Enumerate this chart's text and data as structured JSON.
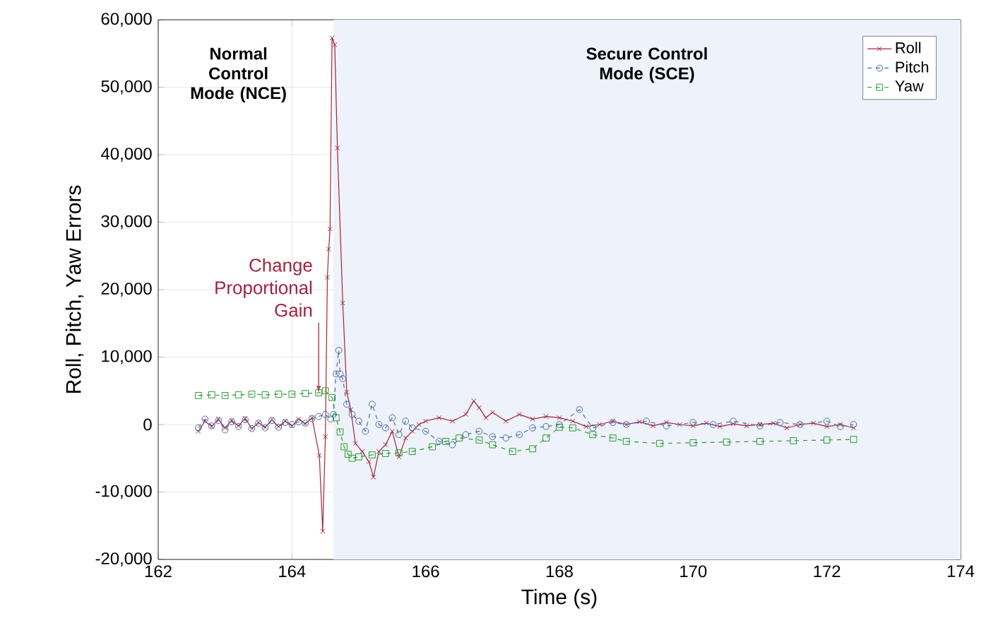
{
  "chart_data": {
    "type": "line",
    "xlabel": "Time (s)",
    "ylabel": "Roll, Pitch, Yaw Errors",
    "xlim": [
      162,
      174
    ],
    "xticks": [
      162,
      164,
      166,
      168,
      170,
      172,
      174
    ],
    "ylim": [
      -20000,
      60000
    ],
    "yticks": [
      {
        "value": -20000,
        "label": "-20,000"
      },
      {
        "value": -10000,
        "label": "-10,000"
      },
      {
        "value": 0,
        "label": "0"
      },
      {
        "value": 10000,
        "label": "10,000"
      },
      {
        "value": 20000,
        "label": "20,000"
      },
      {
        "value": 30000,
        "label": "30,000"
      },
      {
        "value": 40000,
        "label": "40,000"
      },
      {
        "value": 50000,
        "label": "50,000"
      },
      {
        "value": 60000,
        "label": "60,000"
      }
    ],
    "grid": true,
    "legend": "top right",
    "bands": [
      {
        "axis": "x",
        "from": 164.62,
        "to": 174,
        "label": "Secure Control Mode (SCE)",
        "color": "#eef2fa"
      }
    ],
    "annotations": [
      "Normal Control Mode (NCE)",
      {
        "text": "Change Proportional Gain",
        "x": 164.4,
        "y": 4700
      }
    ],
    "series": [
      {
        "name": "Roll",
        "color": "#a3233f",
        "marker": "cross",
        "line_style": "solid",
        "x": [
          162.6,
          162.7,
          162.8,
          162.9,
          163.0,
          163.1,
          163.2,
          163.3,
          163.4,
          163.5,
          163.6,
          163.7,
          163.8,
          163.9,
          164.0,
          164.1,
          164.2,
          164.3,
          164.41,
          164.46,
          164.5,
          164.53,
          164.55,
          164.57,
          164.6,
          164.64,
          164.68,
          164.76,
          164.82,
          164.88,
          164.95,
          165.05,
          165.15,
          165.22,
          165.3,
          165.4,
          165.5,
          165.6,
          165.7,
          165.8,
          165.9,
          166.0,
          166.2,
          166.4,
          166.6,
          166.72,
          166.8,
          166.9,
          167.0,
          167.2,
          167.4,
          167.6,
          167.8,
          168.0,
          168.2,
          168.4,
          168.6,
          168.8,
          169.0,
          169.2,
          169.4,
          169.6,
          169.8,
          170.0,
          170.2,
          170.4,
          170.6,
          170.8,
          171.0,
          171.2,
          171.4,
          171.6,
          171.8,
          172.0,
          172.2,
          172.4
        ],
        "values": [
          -1000,
          500,
          -300,
          800,
          -500,
          600,
          -200,
          900,
          -600,
          300,
          -400,
          700,
          -300,
          500,
          -200,
          800,
          100,
          1000,
          -4600,
          -15800,
          -1800,
          21800,
          26000,
          29000,
          57300,
          56300,
          41000,
          18000,
          4800,
          2200,
          -2800,
          -4000,
          -5500,
          -7800,
          -4000,
          -3000,
          -1000,
          -4800,
          -2000,
          -1000,
          0,
          500,
          1000,
          500,
          1500,
          3500,
          2500,
          1000,
          1800,
          500,
          1500,
          800,
          1200,
          1000,
          500,
          -300,
          0,
          500,
          0,
          400,
          -200,
          300,
          0,
          -200,
          200,
          -300,
          100,
          -200,
          0,
          200,
          -500,
          0,
          200,
          -300,
          0,
          -500
        ]
      },
      {
        "name": "Pitch",
        "color": "#4a6aa5",
        "marker": "circle",
        "line_style": "dashed",
        "x": [
          162.6,
          162.7,
          162.8,
          162.9,
          163.0,
          163.1,
          163.2,
          163.3,
          163.4,
          163.5,
          163.6,
          163.7,
          163.8,
          163.9,
          164.0,
          164.1,
          164.2,
          164.3,
          164.4,
          164.5,
          164.58,
          164.62,
          164.66,
          164.7,
          164.72,
          164.76,
          164.82,
          164.9,
          165.0,
          165.1,
          165.2,
          165.3,
          165.4,
          165.5,
          165.6,
          165.7,
          165.8,
          166.0,
          166.2,
          166.4,
          166.6,
          166.8,
          167.0,
          167.2,
          167.4,
          167.6,
          167.8,
          168.0,
          168.3,
          168.5,
          168.8,
          169.0,
          169.3,
          169.6,
          170.0,
          170.3,
          170.6,
          171.0,
          171.3,
          171.6,
          172.0,
          172.2,
          172.4
        ],
        "values": [
          -500,
          800,
          -200,
          600,
          -800,
          400,
          -300,
          700,
          -600,
          200,
          -500,
          600,
          -400,
          300,
          0,
          400,
          200,
          900,
          1200,
          1500,
          800,
          1500,
          7500,
          11000,
          7500,
          6800,
          3000,
          1500,
          500,
          -1000,
          3000,
          0,
          -500,
          1000,
          -1500,
          500,
          -500,
          -1000,
          -2500,
          -3000,
          -1500,
          -1000,
          -1800,
          -2000,
          -1500,
          -500,
          -300,
          0,
          2200,
          -500,
          300,
          0,
          500,
          -200,
          300,
          0,
          500,
          -200,
          300,
          0,
          500,
          -300,
          0
        ]
      },
      {
        "name": "Yaw",
        "color": "#2b9a2e",
        "marker": "square",
        "line_style": "dashed",
        "x": [
          162.6,
          162.8,
          163.0,
          163.2,
          163.4,
          163.6,
          163.8,
          164.0,
          164.2,
          164.4,
          164.5,
          164.6,
          164.66,
          164.72,
          164.78,
          164.84,
          164.9,
          165.0,
          165.2,
          165.4,
          165.6,
          165.8,
          166.1,
          166.3,
          166.5,
          166.8,
          167.0,
          167.3,
          167.6,
          167.8,
          168.0,
          168.2,
          168.5,
          168.8,
          169.0,
          169.5,
          170.0,
          170.5,
          171.0,
          171.5,
          172.0,
          172.4
        ],
        "values": [
          4300,
          4400,
          4300,
          4400,
          4500,
          4400,
          4500,
          4500,
          4600,
          4700,
          5000,
          4000,
          1000,
          -1100,
          -3300,
          -4400,
          -5000,
          -4800,
          -4500,
          -4300,
          -4200,
          -4000,
          -3300,
          -2500,
          -2000,
          -2300,
          -3000,
          -4000,
          -3600,
          -2000,
          -400,
          -500,
          -1500,
          -2000,
          -2500,
          -2800,
          -2700,
          -2600,
          -2500,
          -2400,
          -2300,
          -2200
        ]
      }
    ]
  }
}
